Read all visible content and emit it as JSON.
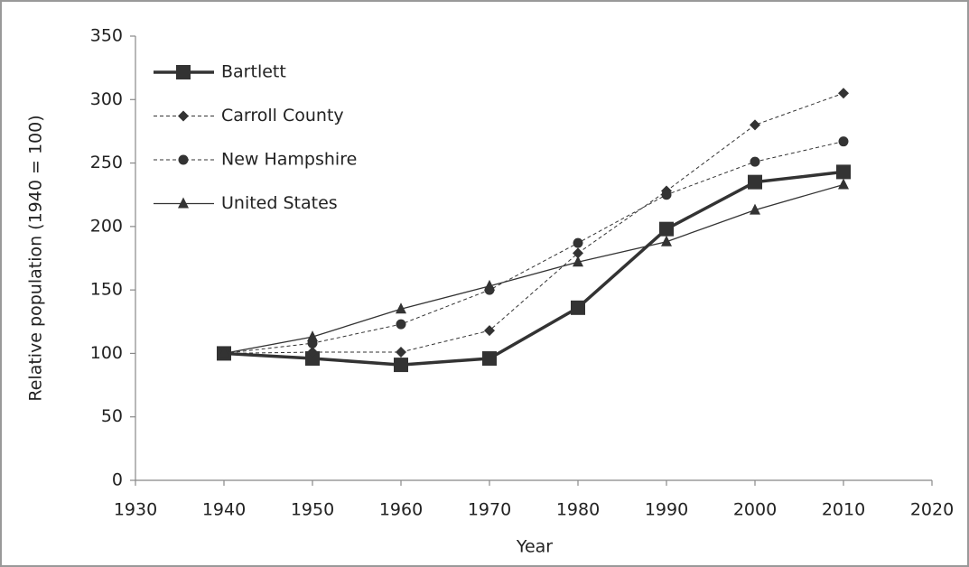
{
  "chart_data": {
    "type": "line",
    "xlabel": "Year",
    "ylabel": "Relative population (1940 = 100)",
    "x": [
      1940,
      1950,
      1960,
      1970,
      1980,
      1990,
      2000,
      2010
    ],
    "series": [
      {
        "name": "Bartlett",
        "color": "#333333",
        "marker": "square",
        "dashed": false,
        "width": 3.5,
        "values": [
          100,
          96,
          91,
          96,
          136,
          198,
          235,
          243
        ]
      },
      {
        "name": "Carroll County",
        "color": "#333333",
        "marker": "diamond",
        "dashed": true,
        "width": 1,
        "values": [
          100,
          101,
          101,
          118,
          179,
          228,
          280,
          305
        ]
      },
      {
        "name": "New Hampshire",
        "color": "#333333",
        "marker": "circle",
        "dashed": true,
        "width": 1,
        "values": [
          100,
          108,
          123,
          150,
          187,
          225,
          251,
          267
        ]
      },
      {
        "name": "United States",
        "color": "#333333",
        "marker": "triangle",
        "dashed": false,
        "width": 1.3,
        "values": [
          100,
          113,
          135,
          153,
          172,
          188,
          213,
          233
        ]
      }
    ],
    "xlim": [
      1930,
      2020
    ],
    "xticks": [
      1930,
      1940,
      1950,
      1960,
      1970,
      1980,
      1990,
      2000,
      2010,
      2020
    ],
    "ylim": [
      0,
      350
    ],
    "yticks": [
      0,
      50,
      100,
      150,
      200,
      250,
      300,
      350
    ],
    "grid": false,
    "legend": "upper left"
  }
}
